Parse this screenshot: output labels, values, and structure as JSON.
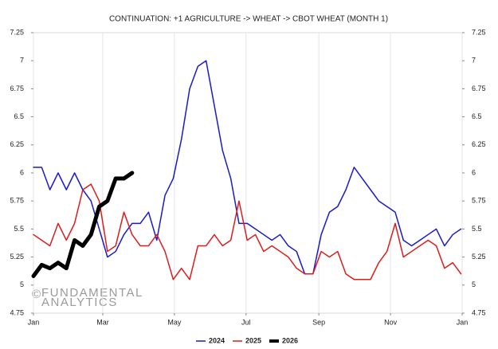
{
  "chart_data": {
    "type": "line",
    "title": "CONTINUATION: +1 AGRICULTURE -> WHEAT -> CBOT WHEAT (MONTH 1)",
    "watermark": [
      "©",
      "FUNDAMENTAL",
      "ANALYTICS"
    ],
    "x": [
      0,
      7,
      14,
      21,
      28,
      35,
      42,
      49,
      56,
      63,
      70,
      77,
      84,
      91,
      98,
      105,
      112,
      119,
      126,
      133,
      140,
      147,
      154,
      161,
      168,
      175,
      182,
      189,
      196,
      203,
      210,
      217,
      224,
      231,
      238,
      245,
      252,
      259,
      266,
      273,
      280,
      287,
      294,
      301,
      308,
      315,
      322,
      329,
      336,
      343,
      350,
      357,
      364
    ],
    "xlim": [
      0,
      365
    ],
    "xticks": [
      {
        "value": 0,
        "label": "Jan"
      },
      {
        "value": 59,
        "label": "Mar"
      },
      {
        "value": 120,
        "label": "May"
      },
      {
        "value": 181,
        "label": "Jul"
      },
      {
        "value": 243,
        "label": "Sep"
      },
      {
        "value": 304,
        "label": "Nov"
      },
      {
        "value": 365,
        "label": "Jan"
      }
    ],
    "ylim": [
      4.75,
      7.25
    ],
    "yticks": [
      4.75,
      5,
      5.25,
      5.5,
      5.75,
      6,
      6.25,
      6.5,
      6.75,
      7,
      7.25
    ],
    "grid": "x",
    "legend": "bottom",
    "series": [
      {
        "name": "2024",
        "color": "#1a1acc",
        "line_width": 1.5,
        "values": [
          6.05,
          6.05,
          5.85,
          6.0,
          5.85,
          6.0,
          5.85,
          5.75,
          5.5,
          5.25,
          5.3,
          5.45,
          5.55,
          5.55,
          5.65,
          5.4,
          5.8,
          5.95,
          6.3,
          6.75,
          6.95,
          7.0,
          6.6,
          6.2,
          5.95,
          5.55,
          5.55,
          5.5,
          5.45,
          5.4,
          5.45,
          5.35,
          5.3,
          5.1,
          5.1,
          5.45,
          5.65,
          5.7,
          5.85,
          6.05,
          5.95,
          5.85,
          5.75,
          5.7,
          5.65,
          5.4,
          5.35,
          5.4,
          5.45,
          5.5,
          5.35,
          5.45,
          5.5
        ]
      },
      {
        "name": "2025",
        "color": "#dd1c1c",
        "line_width": 1.5,
        "values": [
          5.45,
          5.4,
          5.35,
          5.55,
          5.4,
          5.55,
          5.85,
          5.9,
          5.75,
          5.3,
          5.35,
          5.65,
          5.45,
          5.35,
          5.35,
          5.45,
          5.3,
          5.05,
          5.15,
          5.05,
          5.35,
          5.35,
          5.45,
          5.35,
          5.4,
          5.75,
          5.4,
          5.45,
          5.3,
          5.35,
          5.3,
          5.25,
          5.15,
          5.1,
          5.1,
          5.3,
          5.25,
          5.3,
          5.1,
          5.05,
          5.05,
          5.05,
          5.2,
          5.3,
          5.55,
          5.25,
          5.3,
          5.35,
          5.4,
          5.35,
          5.15,
          5.2,
          5.1
        ]
      },
      {
        "name": "2026",
        "color": "#000000",
        "line_width": 5,
        "values": [
          5.08,
          5.18,
          5.15,
          5.2,
          5.15,
          5.4,
          5.35,
          5.45,
          5.7,
          5.75,
          5.95,
          5.95,
          6.0,
          null,
          null,
          null,
          null,
          null,
          null,
          null,
          null,
          null,
          null,
          null,
          null,
          null,
          null,
          null,
          null,
          null,
          null,
          null,
          null,
          null,
          null,
          null,
          null,
          null,
          null,
          null,
          null,
          null,
          null,
          null,
          null,
          null,
          null,
          null,
          null,
          null,
          null,
          null,
          null
        ]
      }
    ]
  }
}
